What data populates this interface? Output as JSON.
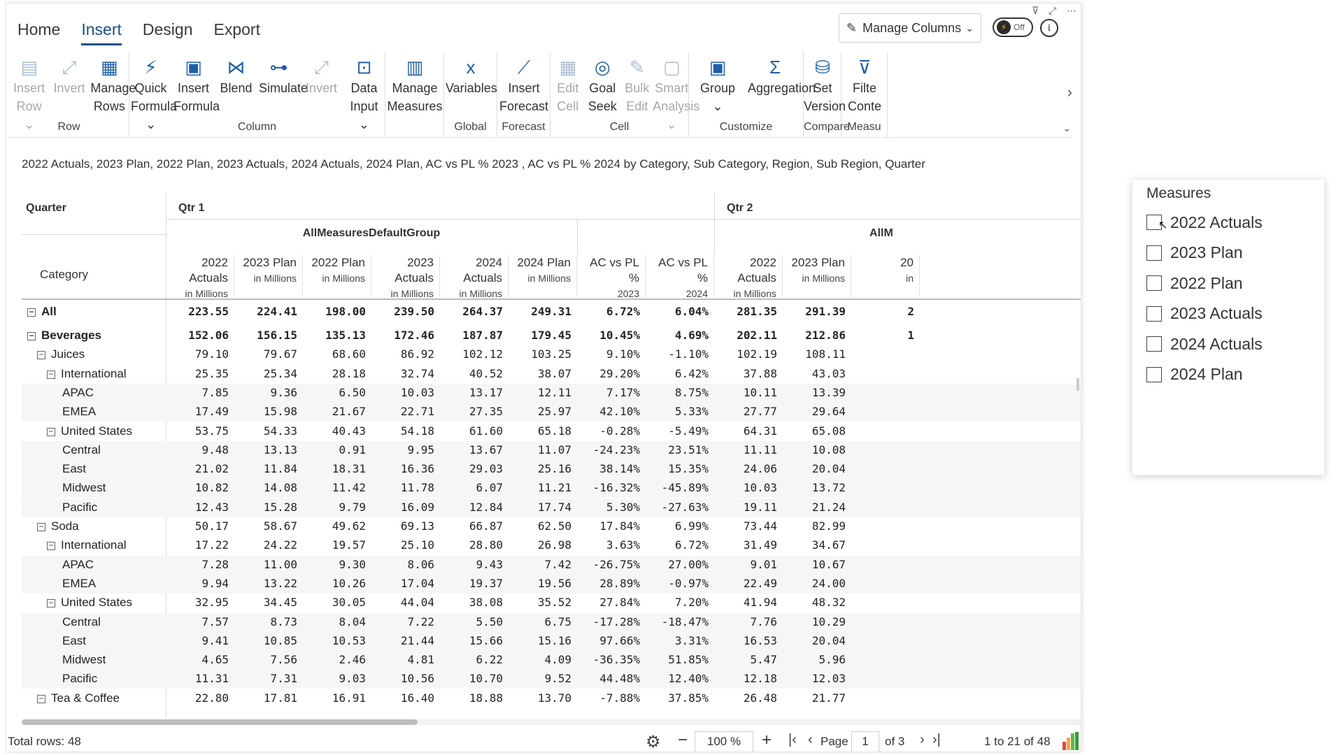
{
  "tabs": [
    "Home",
    "Insert",
    "Design",
    "Export"
  ],
  "active_tab": "Insert",
  "manage_columns_label": "Manage Columns",
  "toggle_label": "Off",
  "info_glyph": "i",
  "ribbon": {
    "groups": [
      {
        "label": "Row",
        "buttons": [
          {
            "t1": "Insert",
            "t2": "Row ⌄",
            "disabled": true,
            "icon": "insert-row-icon"
          },
          {
            "t1": "Invert",
            "t2": "",
            "disabled": true,
            "icon": "invert-icon"
          },
          {
            "t1": "Manage",
            "t2": "Rows",
            "disabled": false,
            "icon": "manage-rows-icon"
          }
        ]
      },
      {
        "label": "Column",
        "buttons": [
          {
            "t1": "Quick",
            "t2": "Formula ⌄",
            "disabled": false,
            "icon": "quick-formula-icon"
          },
          {
            "t1": "Insert",
            "t2": "Formula",
            "disabled": false,
            "icon": "insert-formula-icon"
          },
          {
            "t1": "Blend",
            "t2": "",
            "disabled": false,
            "icon": "blend-icon"
          },
          {
            "t1": "Simulate",
            "t2": "",
            "disabled": false,
            "icon": "simulate-icon"
          },
          {
            "t1": "Invert",
            "t2": "",
            "disabled": true,
            "icon": "invert-icon"
          },
          {
            "t1": "Data",
            "t2": "Input ⌄",
            "disabled": false,
            "icon": "data-input-icon"
          }
        ]
      },
      {
        "label": "",
        "buttons": [
          {
            "t1": "Manage",
            "t2": "Measures",
            "disabled": false,
            "icon": "manage-measures-icon"
          }
        ]
      },
      {
        "label": "Global",
        "buttons": [
          {
            "t1": "Variables",
            "t2": "",
            "disabled": false,
            "icon": "variables-icon"
          }
        ]
      },
      {
        "label": "Forecast",
        "buttons": [
          {
            "t1": "Insert",
            "t2": "Forecast",
            "disabled": false,
            "icon": "forecast-icon"
          }
        ]
      },
      {
        "label": "Cell",
        "buttons": [
          {
            "t1": "Edit",
            "t2": "Cell",
            "disabled": true,
            "icon": "edit-cell-icon"
          },
          {
            "t1": "Goal",
            "t2": "Seek",
            "disabled": false,
            "icon": "goal-seek-icon"
          },
          {
            "t1": "Bulk",
            "t2": "Edit",
            "disabled": true,
            "icon": "bulk-edit-icon"
          },
          {
            "t1": "Smart",
            "t2": "Analysis ⌄",
            "disabled": true,
            "icon": "smart-analysis-icon"
          }
        ]
      },
      {
        "label": "Customize",
        "buttons": [
          {
            "t1": "Group",
            "t2": "⌄",
            "disabled": false,
            "icon": "group-icon"
          },
          {
            "t1": "Aggregation",
            "t2": "",
            "disabled": false,
            "icon": "aggregation-icon"
          }
        ]
      },
      {
        "label": "Compare",
        "buttons": [
          {
            "t1": "Set",
            "t2": "Version",
            "disabled": false,
            "icon": "set-version-icon"
          }
        ]
      },
      {
        "label": "Measu",
        "buttons": [
          {
            "t1": "Filte",
            "t2": "Conte",
            "disabled": false,
            "icon": "filter-icon"
          }
        ]
      }
    ]
  },
  "subtitle": "2022 Actuals, 2023 Plan, 2022 Plan, 2023 Actuals, 2024 Actuals, 2024 Plan, AC vs PL % 2023 , AC vs PL % 2024 by Category, Sub Category, Region, Sub Region, Quarter",
  "table": {
    "quarter_label": "Quarter",
    "category_label": "Category",
    "quarters": [
      "Qtr 1",
      "Qtr 2"
    ],
    "group_label": "AllMeasuresDefaultGroup",
    "group_label_cut": "AllM",
    "columns": [
      {
        "name": "2022 Actuals",
        "unit": "in Millions"
      },
      {
        "name": "2023 Plan",
        "unit": "in Millions"
      },
      {
        "name": "2022 Plan",
        "unit": "in Millions"
      },
      {
        "name": "2023 Actuals",
        "unit": "in Millions"
      },
      {
        "name": "2024 Actuals",
        "unit": "in Millions"
      },
      {
        "name": "2024 Plan",
        "unit": "in Millions"
      },
      {
        "name": "AC vs PL %",
        "unit": "2023"
      },
      {
        "name": "AC vs PL %",
        "unit": "2024"
      },
      {
        "name": "2022 Actuals",
        "unit": "in Millions"
      },
      {
        "name": "2023 Plan",
        "unit": "in Millions"
      },
      {
        "name": "20",
        "unit": "in"
      }
    ],
    "rows": [
      {
        "label": "All",
        "level": 0,
        "box": true,
        "bold": true,
        "v": [
          "223.55",
          "224.41",
          "198.00",
          "239.50",
          "264.37",
          "249.31",
          "6.72%",
          "6.04%",
          "281.35",
          "291.39",
          "2"
        ]
      },
      {
        "label": "Beverages",
        "level": 0,
        "box": true,
        "bold": true,
        "v": [
          "152.06",
          "156.15",
          "135.13",
          "172.46",
          "187.87",
          "179.45",
          "10.45%",
          "4.69%",
          "202.11",
          "212.86",
          "1"
        ]
      },
      {
        "label": "Juices",
        "level": 1,
        "box": true,
        "bold": false,
        "v": [
          "79.10",
          "79.67",
          "68.60",
          "86.92",
          "102.12",
          "103.25",
          "9.10%",
          "-1.10%",
          "102.19",
          "108.11",
          ""
        ]
      },
      {
        "label": "International",
        "level": 2,
        "box": true,
        "bold": false,
        "v": [
          "25.35",
          "25.34",
          "28.18",
          "32.74",
          "40.52",
          "38.07",
          "29.20%",
          "6.42%",
          "37.88",
          "43.03",
          ""
        ]
      },
      {
        "label": "APAC",
        "level": 3,
        "box": false,
        "bold": false,
        "v": [
          "7.85",
          "9.36",
          "6.50",
          "10.03",
          "13.17",
          "12.11",
          "7.17%",
          "8.75%",
          "10.11",
          "13.39",
          ""
        ]
      },
      {
        "label": "EMEA",
        "level": 3,
        "box": false,
        "bold": false,
        "v": [
          "17.49",
          "15.98",
          "21.67",
          "22.71",
          "27.35",
          "25.97",
          "42.10%",
          "5.33%",
          "27.77",
          "29.64",
          ""
        ]
      },
      {
        "label": "United States",
        "level": 2,
        "box": true,
        "bold": false,
        "v": [
          "53.75",
          "54.33",
          "40.43",
          "54.18",
          "61.60",
          "65.18",
          "-0.28%",
          "-5.49%",
          "64.31",
          "65.08",
          ""
        ]
      },
      {
        "label": "Central",
        "level": 3,
        "box": false,
        "bold": false,
        "v": [
          "9.48",
          "13.13",
          "0.91",
          "9.95",
          "13.67",
          "11.07",
          "-24.23%",
          "23.51%",
          "11.11",
          "10.08",
          ""
        ]
      },
      {
        "label": "East",
        "level": 3,
        "box": false,
        "bold": false,
        "v": [
          "21.02",
          "11.84",
          "18.31",
          "16.36",
          "29.03",
          "25.16",
          "38.14%",
          "15.35%",
          "24.06",
          "20.04",
          ""
        ]
      },
      {
        "label": "Midwest",
        "level": 3,
        "box": false,
        "bold": false,
        "v": [
          "10.82",
          "14.08",
          "11.42",
          "11.78",
          "6.07",
          "11.21",
          "-16.32%",
          "-45.89%",
          "10.03",
          "13.72",
          ""
        ]
      },
      {
        "label": "Pacific",
        "level": 3,
        "box": false,
        "bold": false,
        "v": [
          "12.43",
          "15.28",
          "9.79",
          "16.09",
          "12.84",
          "17.74",
          "5.30%",
          "-27.63%",
          "19.11",
          "21.24",
          ""
        ]
      },
      {
        "label": "Soda",
        "level": 1,
        "box": true,
        "bold": false,
        "v": [
          "50.17",
          "58.67",
          "49.62",
          "69.13",
          "66.87",
          "62.50",
          "17.84%",
          "6.99%",
          "73.44",
          "82.99",
          ""
        ]
      },
      {
        "label": "International",
        "level": 2,
        "box": true,
        "bold": false,
        "v": [
          "17.22",
          "24.22",
          "19.57",
          "25.10",
          "28.80",
          "26.98",
          "3.63%",
          "6.72%",
          "31.49",
          "34.67",
          ""
        ]
      },
      {
        "label": "APAC",
        "level": 3,
        "box": false,
        "bold": false,
        "v": [
          "7.28",
          "11.00",
          "9.30",
          "8.06",
          "9.43",
          "7.42",
          "-26.75%",
          "27.00%",
          "9.01",
          "10.67",
          ""
        ]
      },
      {
        "label": "EMEA",
        "level": 3,
        "box": false,
        "bold": false,
        "v": [
          "9.94",
          "13.22",
          "10.26",
          "17.04",
          "19.37",
          "19.56",
          "28.89%",
          "-0.97%",
          "22.49",
          "24.00",
          ""
        ]
      },
      {
        "label": "United States",
        "level": 2,
        "box": true,
        "bold": false,
        "v": [
          "32.95",
          "34.45",
          "30.05",
          "44.04",
          "38.08",
          "35.52",
          "27.84%",
          "7.20%",
          "41.94",
          "48.32",
          ""
        ]
      },
      {
        "label": "Central",
        "level": 3,
        "box": false,
        "bold": false,
        "v": [
          "7.57",
          "8.73",
          "8.04",
          "7.22",
          "5.50",
          "6.75",
          "-17.28%",
          "-18.47%",
          "7.76",
          "10.29",
          ""
        ]
      },
      {
        "label": "East",
        "level": 3,
        "box": false,
        "bold": false,
        "v": [
          "9.41",
          "10.85",
          "10.53",
          "21.44",
          "15.66",
          "15.16",
          "97.66%",
          "3.31%",
          "16.53",
          "20.04",
          ""
        ]
      },
      {
        "label": "Midwest",
        "level": 3,
        "box": false,
        "bold": false,
        "v": [
          "4.65",
          "7.56",
          "2.46",
          "4.81",
          "6.22",
          "4.09",
          "-36.35%",
          "51.85%",
          "5.47",
          "5.96",
          ""
        ]
      },
      {
        "label": "Pacific",
        "level": 3,
        "box": false,
        "bold": false,
        "v": [
          "11.31",
          "7.31",
          "9.03",
          "10.56",
          "10.70",
          "9.52",
          "44.48%",
          "12.40%",
          "12.18",
          "12.03",
          ""
        ]
      },
      {
        "label": "Tea & Coffee",
        "level": 1,
        "box": true,
        "bold": false,
        "v": [
          "22.80",
          "17.81",
          "16.91",
          "16.40",
          "18.88",
          "13.70",
          "-7.88%",
          "37.85%",
          "26.48",
          "21.77",
          ""
        ]
      }
    ]
  },
  "footer": {
    "total_rows": "Total rows: 48",
    "zoom": "100 %",
    "page_label": "Page",
    "page_current": "1",
    "page_of": "of 3",
    "range": "1 to 21 of 48"
  },
  "slicer": {
    "title": "Measures",
    "items": [
      "2022 Actuals",
      "2023 Plan",
      "2022 Plan",
      "2023 Actuals",
      "2024 Actuals",
      "2024 Plan"
    ]
  }
}
